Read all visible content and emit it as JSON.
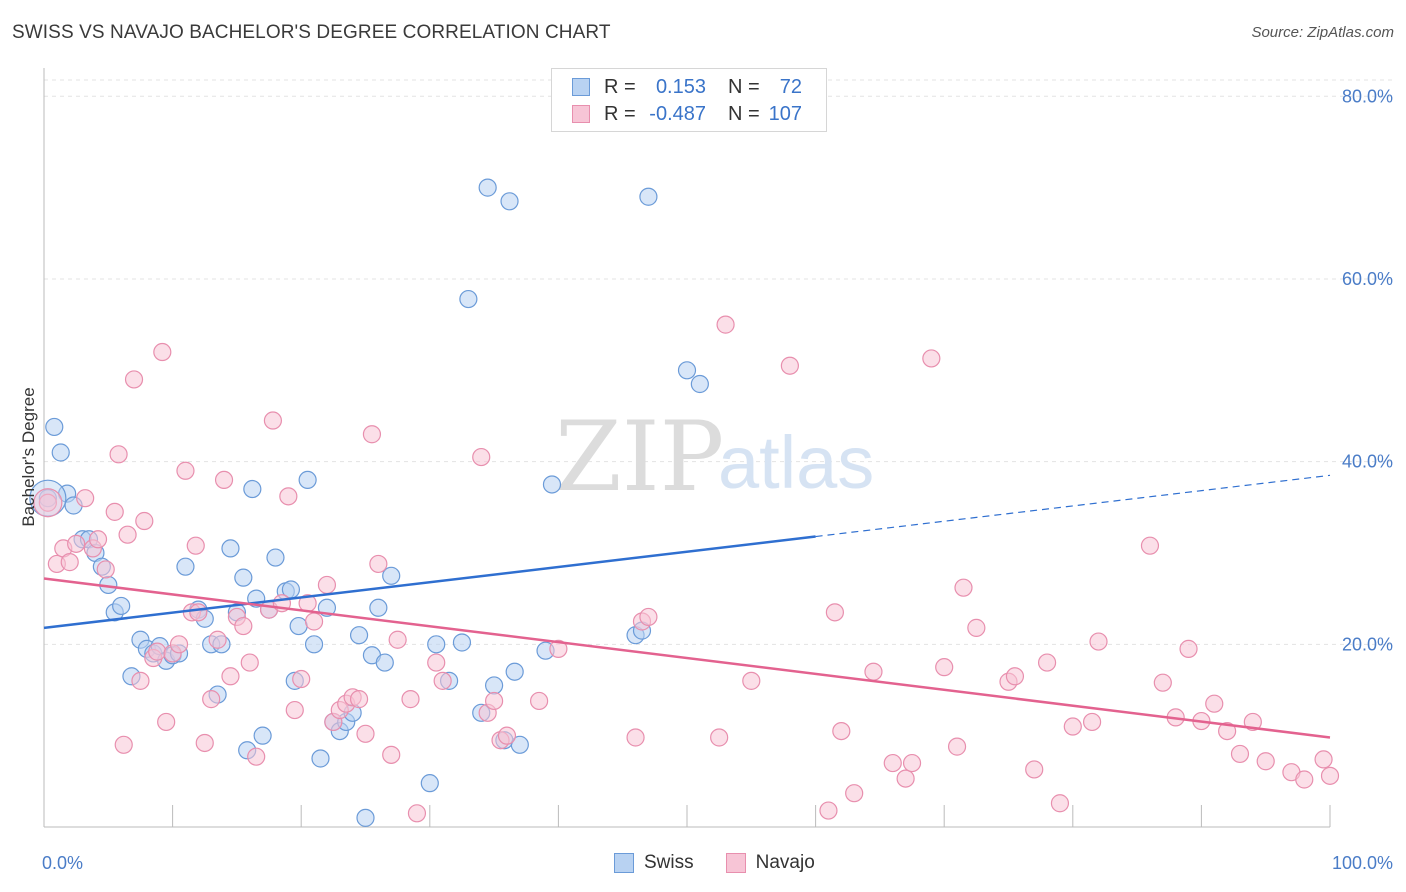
{
  "title": "SWISS VS NAVAJO BACHELOR'S DEGREE CORRELATION CHART",
  "source": "Source: ZipAtlas.com",
  "watermark": {
    "zip": "ZIP",
    "atlas": "atlas"
  },
  "colors": {
    "swiss_fill": "#b8d2f2",
    "swiss_stroke": "#6b9bd8",
    "swiss_line": "#2f6fd0",
    "navajo_fill": "#f7c5d6",
    "navajo_stroke": "#e88fae",
    "navajo_line": "#e3628f",
    "tick_label": "#4a7cc7",
    "grid": "#e3e3e3"
  },
  "legend": {
    "rows": [
      {
        "series": "Swiss",
        "r_label": "R =",
        "r_value": "0.153",
        "n_label": "N =",
        "n_value": "72"
      },
      {
        "series": "Navajo",
        "r_label": "R =",
        "r_value": "-0.487",
        "n_label": "N =",
        "n_value": "107"
      }
    ]
  },
  "chart_data": {
    "type": "scatter",
    "title": "SWISS VS NAVAJO BACHELOR'S DEGREE CORRELATION CHART",
    "xlabel": "",
    "ylabel": "Bachelor's Degree",
    "xlim": [
      0,
      100
    ],
    "ylim": [
      0,
      82
    ],
    "x_tick_labels": [
      "0.0%",
      "100.0%"
    ],
    "y_ticks": [
      20,
      40,
      60,
      80
    ],
    "y_tick_labels": [
      "20.0%",
      "40.0%",
      "60.0%",
      "80.0%"
    ],
    "grid": true,
    "legend_position": "top-center",
    "series": [
      {
        "name": "Swiss",
        "r": 0.153,
        "n": 72,
        "trend": {
          "x": [
            0,
            60
          ],
          "y": [
            21.8,
            31.8
          ],
          "dashed_to": [
            100,
            38.5
          ]
        },
        "points": [
          [
            0.3,
            36.0
          ],
          [
            0.8,
            43.8
          ],
          [
            1.3,
            41.0
          ],
          [
            1.8,
            36.5
          ],
          [
            2.3,
            35.2
          ],
          [
            3.0,
            31.5
          ],
          [
            3.5,
            31.5
          ],
          [
            4.0,
            30.0
          ],
          [
            4.5,
            28.5
          ],
          [
            5.0,
            26.5
          ],
          [
            5.5,
            23.5
          ],
          [
            6.0,
            24.2
          ],
          [
            6.8,
            16.5
          ],
          [
            7.5,
            20.5
          ],
          [
            8.0,
            19.5
          ],
          [
            8.5,
            19.0
          ],
          [
            9.0,
            19.8
          ],
          [
            9.5,
            18.2
          ],
          [
            10.0,
            18.8
          ],
          [
            10.5,
            19.0
          ],
          [
            11.0,
            28.5
          ],
          [
            12.0,
            23.8
          ],
          [
            12.5,
            22.8
          ],
          [
            13.0,
            20.0
          ],
          [
            13.5,
            14.5
          ],
          [
            13.8,
            20.0
          ],
          [
            14.5,
            30.5
          ],
          [
            15.0,
            23.5
          ],
          [
            15.5,
            27.3
          ],
          [
            15.8,
            8.4
          ],
          [
            16.2,
            37.0
          ],
          [
            16.5,
            25.0
          ],
          [
            17.0,
            10.0
          ],
          [
            17.5,
            23.8
          ],
          [
            18.0,
            29.5
          ],
          [
            18.8,
            25.8
          ],
          [
            19.2,
            26.0
          ],
          [
            19.5,
            16.0
          ],
          [
            19.8,
            22.0
          ],
          [
            20.5,
            38.0
          ],
          [
            21.0,
            20.0
          ],
          [
            21.5,
            7.5
          ],
          [
            22.0,
            24.0
          ],
          [
            22.5,
            11.5
          ],
          [
            23.0,
            10.5
          ],
          [
            23.5,
            11.5
          ],
          [
            24.0,
            12.5
          ],
          [
            24.5,
            21.0
          ],
          [
            25.0,
            1.0
          ],
          [
            25.5,
            18.8
          ],
          [
            26.0,
            24.0
          ],
          [
            26.5,
            18.0
          ],
          [
            27.0,
            27.5
          ],
          [
            30.0,
            4.8
          ],
          [
            30.5,
            20.0
          ],
          [
            31.5,
            16.0
          ],
          [
            32.5,
            20.2
          ],
          [
            33.0,
            57.8
          ],
          [
            34.0,
            12.5
          ],
          [
            34.5,
            70.0
          ],
          [
            35.0,
            15.5
          ],
          [
            35.8,
            9.5
          ],
          [
            36.2,
            68.5
          ],
          [
            36.6,
            17.0
          ],
          [
            37.0,
            9.0
          ],
          [
            39.0,
            19.3
          ],
          [
            39.5,
            37.5
          ],
          [
            46.0,
            21.0
          ],
          [
            47.0,
            69.0
          ],
          [
            50.0,
            50.0
          ],
          [
            51.0,
            48.5
          ],
          [
            46.5,
            21.5
          ]
        ]
      },
      {
        "name": "Navajo",
        "r": -0.487,
        "n": 107,
        "trend": {
          "x": [
            0,
            100
          ],
          "y": [
            27.2,
            9.8
          ]
        },
        "points": [
          [
            0.3,
            35.5
          ],
          [
            1.0,
            28.8
          ],
          [
            1.5,
            30.5
          ],
          [
            2.0,
            29.0
          ],
          [
            2.5,
            31.0
          ],
          [
            3.2,
            36.0
          ],
          [
            3.8,
            30.5
          ],
          [
            4.2,
            31.5
          ],
          [
            4.8,
            28.2
          ],
          [
            5.5,
            34.5
          ],
          [
            5.8,
            40.8
          ],
          [
            6.2,
            9.0
          ],
          [
            6.5,
            32.0
          ],
          [
            7.0,
            49.0
          ],
          [
            7.5,
            16.0
          ],
          [
            7.8,
            33.5
          ],
          [
            8.5,
            18.5
          ],
          [
            8.8,
            19.2
          ],
          [
            9.2,
            52.0
          ],
          [
            9.5,
            11.5
          ],
          [
            10.0,
            19.0
          ],
          [
            10.5,
            20.0
          ],
          [
            11.0,
            39.0
          ],
          [
            11.5,
            23.5
          ],
          [
            11.8,
            30.8
          ],
          [
            12.0,
            23.5
          ],
          [
            12.5,
            9.2
          ],
          [
            13.0,
            14.0
          ],
          [
            13.5,
            20.5
          ],
          [
            14.0,
            38.0
          ],
          [
            14.5,
            16.5
          ],
          [
            15.0,
            23.0
          ],
          [
            15.5,
            22.0
          ],
          [
            16.0,
            18.0
          ],
          [
            16.5,
            7.7
          ],
          [
            17.5,
            23.8
          ],
          [
            17.8,
            44.5
          ],
          [
            18.5,
            24.5
          ],
          [
            19.0,
            36.2
          ],
          [
            19.5,
            12.8
          ],
          [
            20.0,
            16.2
          ],
          [
            20.5,
            24.5
          ],
          [
            21.0,
            22.5
          ],
          [
            22.0,
            26.5
          ],
          [
            22.5,
            11.5
          ],
          [
            23.0,
            12.8
          ],
          [
            23.5,
            13.5
          ],
          [
            24.0,
            14.2
          ],
          [
            24.5,
            14.0
          ],
          [
            25.0,
            10.2
          ],
          [
            25.5,
            43.0
          ],
          [
            26.0,
            28.8
          ],
          [
            27.0,
            7.9
          ],
          [
            27.5,
            20.5
          ],
          [
            28.5,
            14.0
          ],
          [
            29.0,
            1.5
          ],
          [
            30.5,
            18.0
          ],
          [
            31.0,
            16.0
          ],
          [
            34.0,
            40.5
          ],
          [
            34.5,
            12.5
          ],
          [
            35.0,
            13.8
          ],
          [
            35.5,
            9.5
          ],
          [
            36.0,
            10.0
          ],
          [
            38.5,
            13.8
          ],
          [
            40.0,
            19.5
          ],
          [
            46.0,
            9.8
          ],
          [
            46.5,
            22.5
          ],
          [
            47.0,
            23.0
          ],
          [
            52.5,
            9.8
          ],
          [
            53.0,
            55.0
          ],
          [
            55.0,
            16.0
          ],
          [
            58.0,
            50.5
          ],
          [
            61.0,
            1.8
          ],
          [
            61.5,
            23.5
          ],
          [
            62.0,
            10.5
          ],
          [
            63.0,
            3.7
          ],
          [
            64.5,
            17.0
          ],
          [
            66.0,
            7.0
          ],
          [
            67.0,
            5.3
          ],
          [
            67.5,
            7.0
          ],
          [
            69.0,
            51.3
          ],
          [
            70.0,
            17.5
          ],
          [
            71.0,
            8.8
          ],
          [
            71.5,
            26.2
          ],
          [
            72.5,
            21.8
          ],
          [
            75.0,
            15.9
          ],
          [
            75.5,
            16.5
          ],
          [
            77.0,
            6.3
          ],
          [
            78.0,
            18.0
          ],
          [
            79.0,
            2.6
          ],
          [
            80.0,
            11.0
          ],
          [
            81.5,
            11.5
          ],
          [
            82.0,
            20.3
          ],
          [
            86.0,
            30.8
          ],
          [
            87.0,
            15.8
          ],
          [
            88.0,
            12.0
          ],
          [
            89.0,
            19.5
          ],
          [
            90.0,
            11.6
          ],
          [
            91.0,
            13.5
          ],
          [
            92.0,
            10.5
          ],
          [
            93.0,
            8.0
          ],
          [
            94.0,
            11.5
          ],
          [
            95.0,
            7.2
          ],
          [
            97.0,
            6.0
          ],
          [
            98.0,
            5.2
          ],
          [
            99.5,
            7.4
          ],
          [
            100.0,
            5.6
          ]
        ]
      }
    ]
  },
  "bottom_legend": [
    {
      "series": "Swiss",
      "label": "Swiss"
    },
    {
      "series": "Navajo",
      "label": "Navajo"
    }
  ]
}
